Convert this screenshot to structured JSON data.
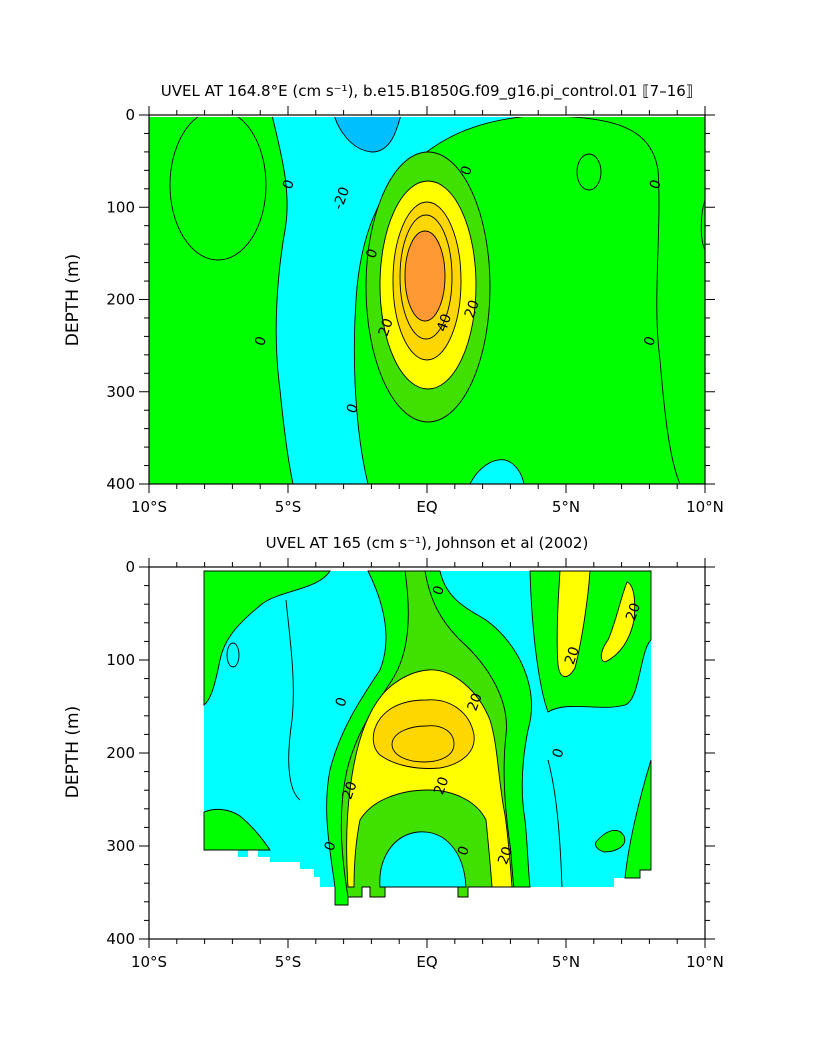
{
  "colors": {
    "neg_lt_minus20": "#00bfff",
    "neg_minus20_0": "#00ffff",
    "pos_0_10": "#00ff00",
    "pos_10_20": "#40e000",
    "pos_20_30": "#ffff00",
    "pos_30_40": "#ffd700",
    "pos_gt_40": "#ff9933",
    "contour_line": "#000000"
  },
  "chart_data": [
    {
      "type": "heatmap",
      "title": "UVEL AT 164.8°E (cm s⁻¹), b.e15.B1850G.f09_g16.pi_control.01 ⟦7–16⟧",
      "ylabel": "DEPTH (m)",
      "xlabel": "",
      "xlim": [
        -10,
        10
      ],
      "ylim": [
        400,
        0
      ],
      "x_ticks": [
        -10,
        -5,
        0,
        5,
        10
      ],
      "x_tick_labels": [
        "10°S",
        "5°S",
        "EQ",
        "5°N",
        "10°N"
      ],
      "y_ticks": [
        0,
        100,
        200,
        300,
        400
      ],
      "y_tick_labels": [
        "0",
        "100",
        "200",
        "300",
        "400"
      ],
      "contour_labels": [
        {
          "text": "0",
          "lat": -5,
          "depth": 75
        },
        {
          "text": "-20",
          "lat": -3.1,
          "depth": 90
        },
        {
          "text": "0",
          "lat": -2,
          "depth": 150
        },
        {
          "text": "20",
          "lat": -1.5,
          "depth": 230
        },
        {
          "text": "40",
          "lat": 0.6,
          "depth": 225
        },
        {
          "text": "20",
          "lat": 1.6,
          "depth": 210
        },
        {
          "text": "0",
          "lat": 1.4,
          "depth": 60
        },
        {
          "text": "0",
          "lat": 8.2,
          "depth": 75
        },
        {
          "text": "0",
          "lat": -6,
          "depth": 245
        },
        {
          "text": "0",
          "lat": -2.7,
          "depth": 318
        },
        {
          "text": "0",
          "lat": 8,
          "depth": 245
        }
      ],
      "features": [
        {
          "kind": "ellipse",
          "level": "pos_0_10",
          "lat": -8.3,
          "depth": 75,
          "rx_deg": 1.3,
          "ry_m": 75
        },
        {
          "kind": "ellipse",
          "level": "pos_0_10",
          "lat": 5.8,
          "depth": 62,
          "rx_deg": 0.4,
          "ry_m": 18
        },
        {
          "kind": "ellipse",
          "level": "neg_lt_minus20",
          "lat": -3.05,
          "depth": 10,
          "rx_deg": 1.3,
          "ry_m": 30
        },
        {
          "kind": "ellipse",
          "level": "pos_10_20",
          "lat": 0,
          "depth": 185,
          "rx_deg": 2.2,
          "ry_m": 150
        },
        {
          "kind": "ellipse",
          "level": "pos_20_30",
          "lat": 0,
          "depth": 182,
          "rx_deg": 1.7,
          "ry_m": 118
        },
        {
          "kind": "ellipse",
          "level": "pos_30_40",
          "lat": -0.05,
          "depth": 178,
          "rx_deg": 1.2,
          "ry_m": 88
        },
        {
          "kind": "ellipse",
          "level": "pos_gt_40",
          "lat": -0.1,
          "depth": 172,
          "rx_deg": 0.8,
          "ry_m": 58
        }
      ]
    },
    {
      "type": "heatmap",
      "title": "UVEL AT 165 (cm s⁻¹), Johnson et al (2002)",
      "ylabel": "DEPTH (m)",
      "xlabel": "",
      "xlim": [
        -10,
        10
      ],
      "ylim": [
        400,
        0
      ],
      "x_ticks": [
        -10,
        -5,
        0,
        5,
        10
      ],
      "x_tick_labels": [
        "10°S",
        "5°S",
        "EQ",
        "5°N",
        "10°N"
      ],
      "y_ticks": [
        0,
        100,
        200,
        300,
        400
      ],
      "y_tick_labels": [
        "0",
        "100",
        "200",
        "300",
        "400"
      ],
      "data_extent_lat": [
        -8,
        8
      ],
      "contour_labels": [
        {
          "text": "0",
          "lat": 0.4,
          "depth": 25
        },
        {
          "text": "20",
          "lat": 7.4,
          "depth": 48
        },
        {
          "text": "20",
          "lat": 5.2,
          "depth": 95
        },
        {
          "text": "0",
          "lat": -3.1,
          "depth": 145
        },
        {
          "text": "20",
          "lat": 1.7,
          "depth": 145
        },
        {
          "text": "0",
          "lat": 4.7,
          "depth": 200
        },
        {
          "text": "20",
          "lat": -2.8,
          "depth": 240
        },
        {
          "text": "20",
          "lat": 0.5,
          "depth": 235
        },
        {
          "text": "0",
          "lat": -3.5,
          "depth": 300
        },
        {
          "text": "0",
          "lat": 1.3,
          "depth": 305
        },
        {
          "text": "20",
          "lat": 2.8,
          "depth": 310
        }
      ]
    }
  ]
}
